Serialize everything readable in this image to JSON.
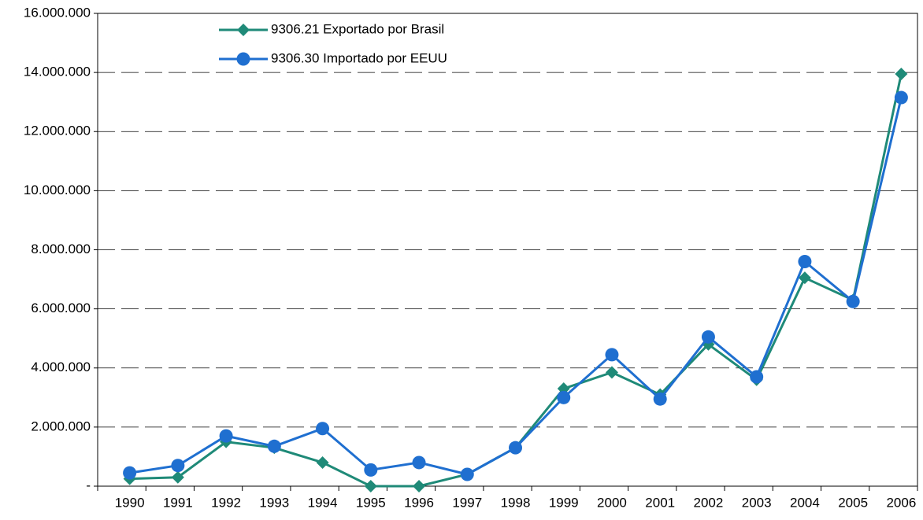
{
  "chart_data": {
    "type": "line",
    "categories": [
      "1990",
      "1991",
      "1992",
      "1993",
      "1994",
      "1995",
      "1996",
      "1997",
      "1998",
      "1999",
      "2000",
      "2001",
      "2002",
      "2003",
      "2004",
      "2005",
      "2006"
    ],
    "series": [
      {
        "name": "9306.21 Exportado por Brasil",
        "color": "#1f8a78",
        "marker": "diamond",
        "values": [
          250000,
          300000,
          1500000,
          1300000,
          800000,
          0,
          0,
          400000,
          1300000,
          3300000,
          3850000,
          3100000,
          4800000,
          3600000,
          7050000,
          6300000,
          13950000
        ]
      },
      {
        "name": "9306.30 Importado por EEUU",
        "color": "#1f6fd0",
        "marker": "circle",
        "values": [
          450000,
          700000,
          1700000,
          1350000,
          1950000,
          550000,
          800000,
          400000,
          1300000,
          3000000,
          4450000,
          2950000,
          5050000,
          3700000,
          7600000,
          6250000,
          13150000
        ]
      }
    ],
    "ylim": [
      0,
      16000000
    ],
    "yticks": [
      {
        "value": 0,
        "label": "-"
      },
      {
        "value": 2000000,
        "label": "2.000.000"
      },
      {
        "value": 4000000,
        "label": "4.000.000"
      },
      {
        "value": 6000000,
        "label": "6.000.000"
      },
      {
        "value": 8000000,
        "label": "8.000.000"
      },
      {
        "value": 10000000,
        "label": "10.000.000"
      },
      {
        "value": 12000000,
        "label": "12.000.000"
      },
      {
        "value": 14000000,
        "label": "14.000.000"
      },
      {
        "value": 16000000,
        "label": "16.000.000"
      }
    ],
    "grid": true,
    "legend": "top-left"
  }
}
